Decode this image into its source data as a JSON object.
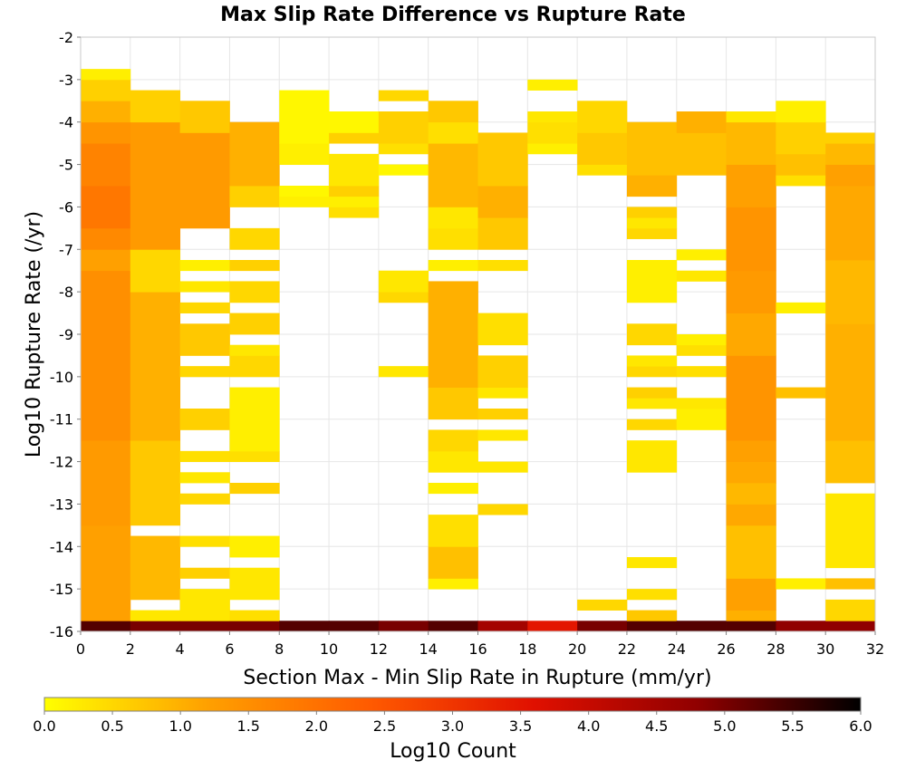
{
  "chart_data": {
    "type": "heatmap",
    "title": "Max Slip Rate Difference vs Rupture Rate",
    "xlabel": "Section Max - Min Slip Rate in Rupture (mm/yr)",
    "ylabel": "Log10 Rupture Rate (/yr)",
    "colorbar_label": "Log10 Count",
    "xlim": [
      0,
      32
    ],
    "ylim": [
      -16,
      -2
    ],
    "x_ticks": [
      "0",
      "2",
      "4",
      "6",
      "8",
      "10",
      "12",
      "14",
      "16",
      "18",
      "20",
      "22",
      "24",
      "26",
      "28",
      "30",
      "32"
    ],
    "y_ticks": [
      "-2",
      "-3",
      "-4",
      "-5",
      "-6",
      "-7",
      "-8",
      "-9",
      "-10",
      "-11",
      "-12",
      "-13",
      "-14",
      "-15",
      "-16"
    ],
    "colorbar_range": [
      0,
      6
    ],
    "colorbar_ticks": [
      "0.0",
      "0.5",
      "1.0",
      "1.5",
      "2.0",
      "2.5",
      "3.0",
      "3.5",
      "4.0",
      "4.5",
      "5.0",
      "5.5",
      "6.0"
    ],
    "grid": true,
    "colors": {
      "colormap": [
        "#ffff00",
        "#ffa000",
        "#ff5a00",
        "#e01000",
        "#900000",
        "#000000"
      ],
      "grid": "#e6e6e6",
      "frame": "#c8c8c8"
    },
    "x_bin_width": 2,
    "y_bin_height": 0.25,
    "row_ranges_note": "",
    "columns": [
      {
        "x": [
          0,
          2
        ],
        "runs": [
          [
            -16,
            -15.75,
            5.3
          ],
          [
            -15.75,
            -13.5,
            1.2
          ],
          [
            -13.5,
            -11.5,
            1.3
          ],
          [
            -11.5,
            -9,
            1.5
          ],
          [
            -9,
            -7.5,
            1.5
          ],
          [
            -7.5,
            -7,
            1.2
          ],
          [
            -7,
            -6.5,
            1.6
          ],
          [
            -6.5,
            -5.5,
            1.9
          ],
          [
            -5.5,
            -4.5,
            1.7
          ],
          [
            -4.5,
            -4,
            1.4
          ],
          [
            -4,
            -3.5,
            1.0
          ],
          [
            -3.5,
            -3,
            0.6
          ],
          [
            -3,
            -2.75,
            0.2
          ]
        ]
      },
      {
        "x": [
          2,
          4
        ],
        "runs": [
          [
            -16,
            -15.75,
            5.0
          ],
          [
            -15.75,
            -15.5,
            0.3
          ],
          [
            -15.25,
            -13.75,
            0.9
          ],
          [
            -13.5,
            -11.5,
            0.7
          ],
          [
            -11.5,
            -8,
            1.0
          ],
          [
            -8,
            -7,
            0.5
          ],
          [
            -7,
            -4,
            1.3
          ],
          [
            -4,
            -3.25,
            0.6
          ]
        ]
      },
      {
        "x": [
          4,
          6
        ],
        "runs": [
          [
            -16,
            -15.75,
            5.0
          ],
          [
            -15.75,
            -15,
            0.3
          ],
          [
            -14.75,
            -14.5,
            0.6
          ],
          [
            -14,
            -13.75,
            0.4
          ],
          [
            -13,
            -12.75,
            0.5
          ],
          [
            -12.5,
            -12.25,
            0.3
          ],
          [
            -12,
            -11.75,
            0.4
          ],
          [
            -11.25,
            -10.75,
            0.6
          ],
          [
            -10,
            -9.75,
            0.5
          ],
          [
            -9.5,
            -8.75,
            0.7
          ],
          [
            -8.5,
            -8.25,
            0.5
          ],
          [
            -8,
            -7.75,
            0.3
          ],
          [
            -7.5,
            -7.25,
            0.2
          ],
          [
            -6.5,
            -4.25,
            1.3
          ],
          [
            -4.25,
            -3.5,
            0.7
          ]
        ]
      },
      {
        "x": [
          6,
          8
        ],
        "runs": [
          [
            -16,
            -15.75,
            5.0
          ],
          [
            -15.75,
            -15.5,
            0.4
          ],
          [
            -15.25,
            -14.5,
            0.3
          ],
          [
            -14.25,
            -13.75,
            0.2
          ],
          [
            -12.75,
            -12.5,
            0.6
          ],
          [
            -12,
            -11.75,
            0.4
          ],
          [
            -11.75,
            -10.25,
            0.2
          ],
          [
            -10,
            -9.5,
            0.5
          ],
          [
            -9.5,
            -9.25,
            0.3
          ],
          [
            -9,
            -8.5,
            0.6
          ],
          [
            -8.25,
            -7.75,
            0.5
          ],
          [
            -7.5,
            -7.25,
            0.6
          ],
          [
            -7,
            -6.5,
            0.5
          ],
          [
            -6,
            -5.5,
            0.6
          ],
          [
            -5.5,
            -4,
            1.0
          ]
        ]
      },
      {
        "x": [
          8,
          10
        ],
        "runs": [
          [
            -16,
            -15.75,
            5.3
          ],
          [
            -6,
            -5.75,
            0.2
          ],
          [
            -5.75,
            -5.5,
            0.1
          ],
          [
            -5,
            -4.5,
            0.2
          ],
          [
            -4.5,
            -3.25,
            0.1
          ]
        ]
      },
      {
        "x": [
          10,
          12
        ],
        "runs": [
          [
            -16,
            -15.75,
            5.3
          ],
          [
            -6.25,
            -6,
            0.4
          ],
          [
            -6,
            -5.75,
            0.2
          ],
          [
            -5.75,
            -5.5,
            0.6
          ],
          [
            -5.5,
            -4.75,
            0.3
          ],
          [
            -4.5,
            -4.25,
            0.6
          ],
          [
            -4.25,
            -3.75,
            0.1
          ]
        ]
      },
      {
        "x": [
          12,
          14
        ],
        "runs": [
          [
            -16,
            -15.75,
            5.0
          ],
          [
            -10,
            -9.75,
            0.3
          ],
          [
            -8.25,
            -8,
            0.5
          ],
          [
            -8,
            -7.5,
            0.3
          ],
          [
            -5.25,
            -5,
            0.1
          ],
          [
            -4.75,
            -4.5,
            0.4
          ],
          [
            -4.5,
            -3.75,
            0.6
          ],
          [
            -3.5,
            -3.25,
            0.5
          ]
        ]
      },
      {
        "x": [
          14,
          16
        ],
        "runs": [
          [
            -16,
            -15.75,
            5.3
          ],
          [
            -15,
            -14.75,
            0.2
          ],
          [
            -14.75,
            -14,
            0.8
          ],
          [
            -14,
            -13.25,
            0.4
          ],
          [
            -12.75,
            -12.5,
            0.2
          ],
          [
            -12.25,
            -11.75,
            0.3
          ],
          [
            -11.75,
            -11.25,
            0.5
          ],
          [
            -11,
            -10.25,
            0.7
          ],
          [
            -10.25,
            -7.75,
            1.0
          ],
          [
            -7.5,
            -7.25,
            0.2
          ],
          [
            -7,
            -6.5,
            0.4
          ],
          [
            -6.5,
            -6,
            0.3
          ],
          [
            -6,
            -4.5,
            0.9
          ],
          [
            -4.5,
            -4,
            0.4
          ],
          [
            -4,
            -3.5,
            0.7
          ]
        ]
      },
      {
        "x": [
          16,
          18
        ],
        "runs": [
          [
            -16,
            -15.75,
            4.5
          ],
          [
            -13.25,
            -13,
            0.5
          ],
          [
            -12.25,
            -12,
            0.3
          ],
          [
            -11.5,
            -11.25,
            0.3
          ],
          [
            -11,
            -10.75,
            0.6
          ],
          [
            -10.5,
            -10.25,
            0.3
          ],
          [
            -10.25,
            -9.5,
            0.6
          ],
          [
            -9.25,
            -8.5,
            0.4
          ],
          [
            -7.5,
            -7.25,
            0.4
          ],
          [
            -7,
            -6.25,
            0.7
          ],
          [
            -6.25,
            -5.5,
            1.0
          ],
          [
            -5.5,
            -4.25,
            0.7
          ]
        ]
      },
      {
        "x": [
          18,
          20
        ],
        "runs": [
          [
            -16,
            -15.75,
            3.5
          ],
          [
            -4.75,
            -4.5,
            0.2
          ],
          [
            -4.5,
            -4,
            0.4
          ],
          [
            -4,
            -3.75,
            0.3
          ],
          [
            -3.25,
            -3,
            0.2
          ]
        ]
      },
      {
        "x": [
          20,
          22
        ],
        "runs": [
          [
            -16,
            -15.75,
            5.0
          ],
          [
            -15.5,
            -15.25,
            0.5
          ],
          [
            -5.25,
            -5,
            0.4
          ],
          [
            -5,
            -4.25,
            0.7
          ],
          [
            -4.25,
            -3.5,
            0.5
          ]
        ]
      },
      {
        "x": [
          22,
          24
        ],
        "runs": [
          [
            -16,
            -15.75,
            5.3
          ],
          [
            -15.75,
            -15.5,
            0.7
          ],
          [
            -15.25,
            -15,
            0.4
          ],
          [
            -14.5,
            -14.25,
            0.3
          ],
          [
            -12.25,
            -11.5,
            0.3
          ],
          [
            -11.25,
            -11,
            0.5
          ],
          [
            -10.75,
            -10.5,
            0.3
          ],
          [
            -10.5,
            -10.25,
            0.6
          ],
          [
            -10,
            -9.75,
            0.5
          ],
          [
            -9.75,
            -9.5,
            0.3
          ],
          [
            -9.25,
            -8.75,
            0.5
          ],
          [
            -8.25,
            -7.25,
            0.2
          ],
          [
            -6.75,
            -6.5,
            0.5
          ],
          [
            -6.5,
            -6.25,
            0.3
          ],
          [
            -6.25,
            -6,
            0.6
          ],
          [
            -5.75,
            -5.25,
            1.0
          ],
          [
            -5.25,
            -4,
            0.8
          ]
        ]
      },
      {
        "x": [
          24,
          26
        ],
        "runs": [
          [
            -16,
            -15.75,
            5.3
          ],
          [
            -11.25,
            -10.75,
            0.2
          ],
          [
            -10.75,
            -10.5,
            0.3
          ],
          [
            -10,
            -9.75,
            0.4
          ],
          [
            -9.5,
            -9.25,
            0.4
          ],
          [
            -9.25,
            -9,
            0.2
          ],
          [
            -7.75,
            -7.5,
            0.3
          ],
          [
            -7.25,
            -7,
            0.2
          ],
          [
            -5.25,
            -4.25,
            0.8
          ],
          [
            -4.25,
            -3.75,
            1.0
          ]
        ]
      },
      {
        "x": [
          26,
          28
        ],
        "runs": [
          [
            -16,
            -15.75,
            5.3
          ],
          [
            -15.75,
            -15.5,
            1.0
          ],
          [
            -15.5,
            -14.75,
            1.2
          ],
          [
            -14.75,
            -13.5,
            0.8
          ],
          [
            -13.5,
            -13,
            1.1
          ],
          [
            -13,
            -12.5,
            0.9
          ],
          [
            -12.5,
            -12,
            1.1
          ],
          [
            -12,
            -11.5,
            1.2
          ],
          [
            -11.5,
            -9.5,
            1.4
          ],
          [
            -9.5,
            -8.5,
            1.1
          ],
          [
            -8.5,
            -7.5,
            1.3
          ],
          [
            -7.5,
            -6,
            1.4
          ],
          [
            -6,
            -5,
            1.2
          ],
          [
            -5,
            -4,
            0.9
          ],
          [
            -4,
            -3.75,
            0.3
          ]
        ]
      },
      {
        "x": [
          28,
          30
        ],
        "runs": [
          [
            -16,
            -15.75,
            4.8
          ],
          [
            -15,
            -14.75,
            0.2
          ],
          [
            -10.5,
            -10.25,
            0.8
          ],
          [
            -8.5,
            -8.25,
            0.2
          ],
          [
            -5.5,
            -5.25,
            0.4
          ],
          [
            -5.25,
            -4.75,
            0.8
          ],
          [
            -4.75,
            -4,
            0.6
          ],
          [
            -4,
            -3.5,
            0.2
          ]
        ]
      },
      {
        "x": [
          30,
          32
        ],
        "runs": [
          [
            -16,
            -15.75,
            4.8
          ],
          [
            -15.75,
            -15.25,
            0.5
          ],
          [
            -15,
            -14.75,
            0.8
          ],
          [
            -14.5,
            -12.75,
            0.3
          ],
          [
            -12.5,
            -11.5,
            0.8
          ],
          [
            -11.5,
            -8.75,
            1.0
          ],
          [
            -8.75,
            -7.25,
            0.9
          ],
          [
            -7.25,
            -5.5,
            1.1
          ],
          [
            -5.5,
            -5,
            1.2
          ],
          [
            -5,
            -4.5,
            0.9
          ],
          [
            -4.5,
            -4.25,
            0.6
          ]
        ]
      }
    ]
  }
}
